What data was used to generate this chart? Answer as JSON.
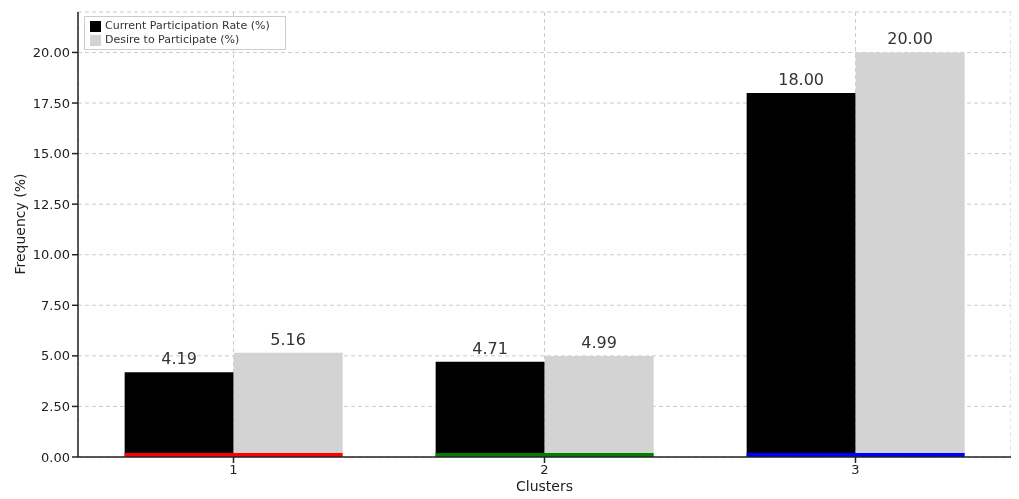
{
  "chart_data": {
    "type": "bar",
    "xlabel": "Clusters",
    "ylabel": "Frequency (%)",
    "categories": [
      "1",
      "2",
      "3"
    ],
    "series": [
      {
        "name": "Current Participation Rate (%)",
        "color": "#000000",
        "values": [
          4.19,
          4.71,
          18.0
        ],
        "value_labels": [
          "4.19",
          "4.71",
          "18.00"
        ]
      },
      {
        "name": "Desire to Participate (%)",
        "color": "#d3d3d3",
        "values": [
          5.16,
          4.99,
          20.0
        ],
        "value_labels": [
          "5.16",
          "4.99",
          "20.00"
        ]
      },
      {
        "type": "bar",
        "colors": [
          "#ff0000",
          "#008000",
          "#0000ff"
        ],
        "values": [
          0.2,
          0.2,
          0.2
        ]
      }
    ],
    "ylim": [
      0,
      22
    ],
    "yticks": [
      {
        "value": 0,
        "label": "0.00"
      },
      {
        "value": 2.5,
        "label": "2.50"
      },
      {
        "value": 5,
        "label": "5.00"
      },
      {
        "value": 7.5,
        "label": "7.50"
      },
      {
        "value": 10,
        "label": "10.00"
      },
      {
        "value": 12.5,
        "label": "12.50"
      },
      {
        "value": 15,
        "label": "15.00"
      },
      {
        "value": 17.5,
        "label": "17.50"
      },
      {
        "value": 20,
        "label": "20.00"
      }
    ],
    "grid": true,
    "legend": "top left"
  }
}
